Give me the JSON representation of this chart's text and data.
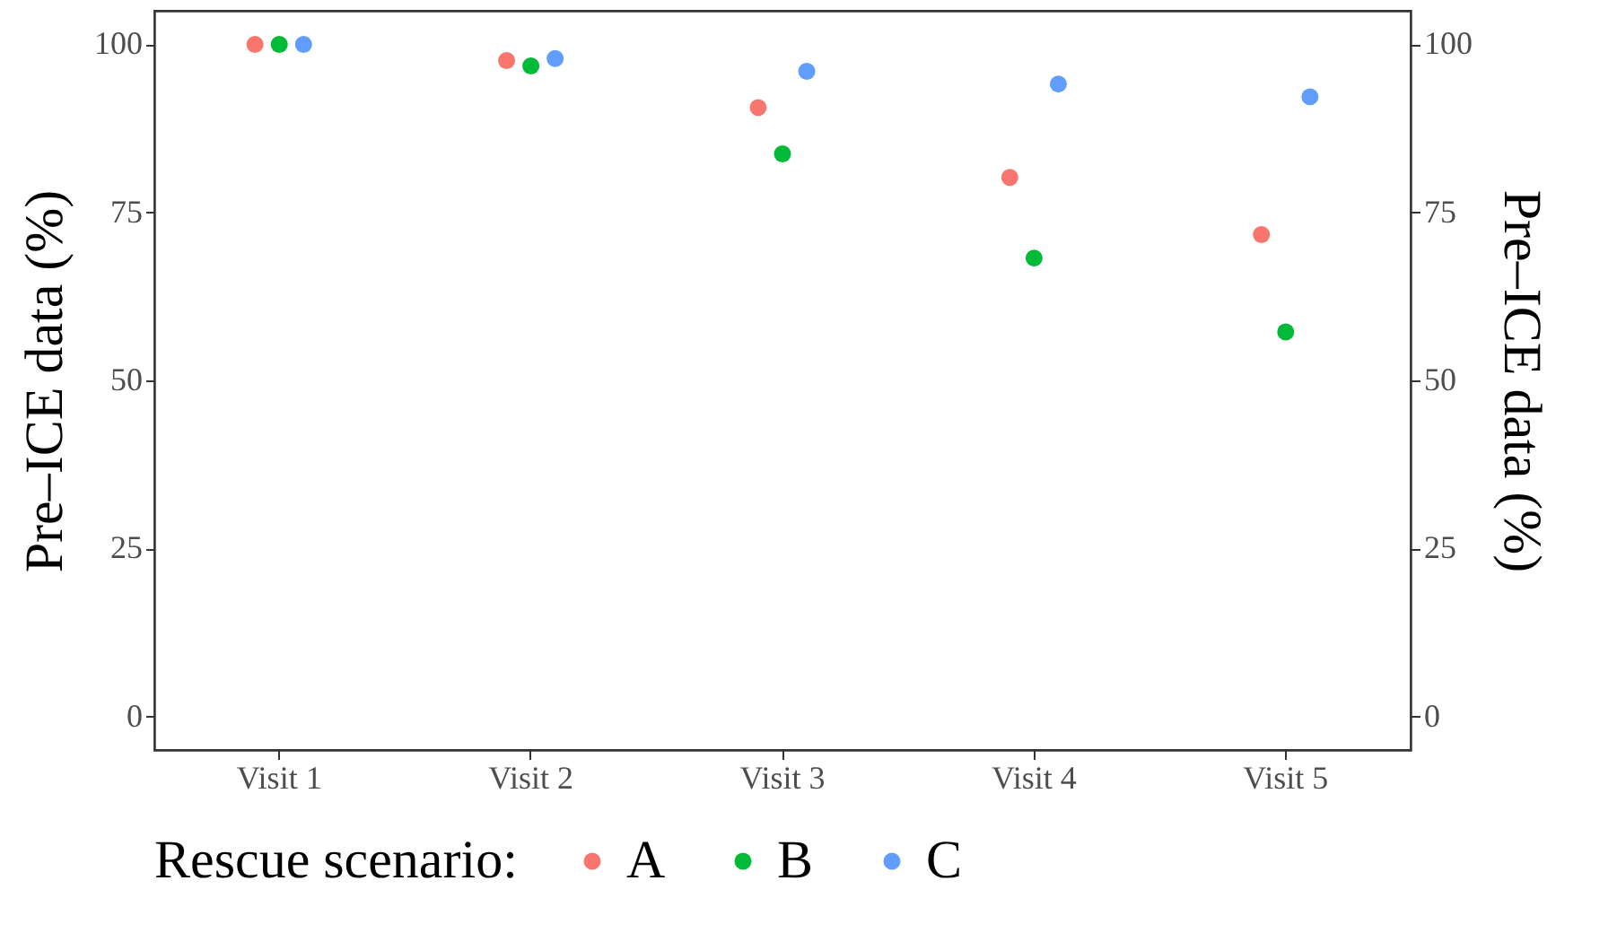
{
  "chart_data": {
    "type": "scatter",
    "categories": [
      "Visit 1",
      "Visit 2",
      "Visit 3",
      "Visit 4",
      "Visit 5"
    ],
    "series": [
      {
        "name": "A",
        "color": "#f8766d",
        "values": [
          100,
          97.6,
          90.6,
          80.2,
          71.7
        ]
      },
      {
        "name": "B",
        "color": "#00ba38",
        "values": [
          100,
          96.8,
          83.7,
          68.2,
          57.2
        ]
      },
      {
        "name": "C",
        "color": "#619cff",
        "values": [
          100,
          97.9,
          96.0,
          94.1,
          92.2
        ]
      }
    ],
    "ylabel": "Pre–ICE data (%)",
    "y2label": "Pre–ICE data (%)",
    "ylim": [
      -5,
      105
    ],
    "yticks": [
      0,
      25,
      50,
      75,
      100
    ],
    "y2lim": [
      -5,
      105
    ],
    "y2ticks": [
      0,
      25,
      50,
      75,
      100
    ],
    "legend_title": "Rescue scenario:",
    "legend": "bottom",
    "grid": false,
    "marker": "circle"
  }
}
